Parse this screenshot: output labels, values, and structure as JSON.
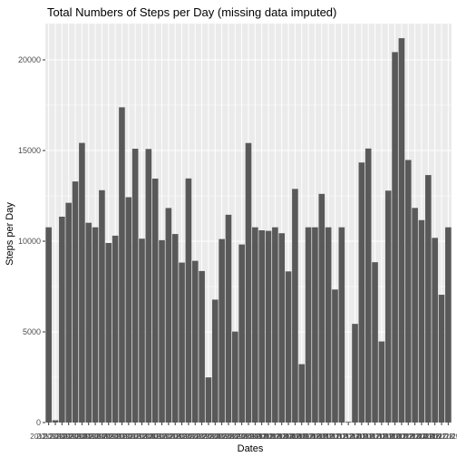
{
  "chart_data": {
    "type": "bar",
    "title": "Total Numbers of Steps per Day (missing data imputed)",
    "xlabel": "Dates",
    "ylabel": "Steps per Day",
    "ylim": [
      0,
      22000
    ],
    "yticks": [
      0,
      5000,
      10000,
      15000,
      20000
    ],
    "ytick_labels": [
      "0",
      "5000",
      "10000",
      "15000",
      "20000"
    ],
    "categories": [
      "2012-10-01",
      "2012-10-02",
      "2012-10-03",
      "2012-10-04",
      "2012-10-05",
      "2012-10-06",
      "2012-10-07",
      "2012-10-08",
      "2012-10-09",
      "2012-10-10",
      "2012-10-11",
      "2012-10-12",
      "2012-10-13",
      "2012-10-14",
      "2012-10-15",
      "2012-10-16",
      "2012-10-17",
      "2012-10-18",
      "2012-10-19",
      "2012-10-20",
      "2012-10-21",
      "2012-10-22",
      "2012-10-23",
      "2012-10-24",
      "2012-10-25",
      "2012-10-26",
      "2012-10-27",
      "2012-10-28",
      "2012-10-29",
      "2012-10-30",
      "2012-10-31",
      "2012-11-01",
      "2012-11-02",
      "2012-11-03",
      "2012-11-04",
      "2012-11-05",
      "2012-11-06",
      "2012-11-07",
      "2012-11-08",
      "2012-11-09",
      "2012-11-10",
      "2012-11-11",
      "2012-11-12",
      "2012-11-13",
      "2012-11-14",
      "2012-11-15",
      "2012-11-16",
      "2012-11-17",
      "2012-11-18",
      "2012-11-19",
      "2012-11-20",
      "2012-11-21",
      "2012-11-22",
      "2012-11-23",
      "2012-11-24",
      "2012-11-25",
      "2012-11-26",
      "2012-11-27",
      "2012-11-28",
      "2012-11-29",
      "2012-11-30"
    ],
    "values": [
      10766,
      126,
      11352,
      12116,
      13294,
      15420,
      11015,
      10766,
      12811,
      9900,
      10304,
      17382,
      12426,
      15098,
      10139,
      15084,
      13452,
      10056,
      11829,
      10395,
      8821,
      13460,
      8918,
      8355,
      2492,
      6778,
      10119,
      11458,
      5018,
      9819,
      15414,
      10766,
      10600,
      10571,
      10766,
      10439,
      8334,
      12883,
      3219,
      10766,
      10766,
      12608,
      10765,
      7336,
      10766,
      41,
      5441,
      14339,
      15110,
      8841,
      4472,
      12787,
      20427,
      21194,
      14478,
      11834,
      11162,
      13646,
      10183,
      7047,
      10766
    ],
    "grid": true,
    "bar_color": "#595959",
    "panel_background": "#ebebeb",
    "grid_color": "#ffffff"
  }
}
